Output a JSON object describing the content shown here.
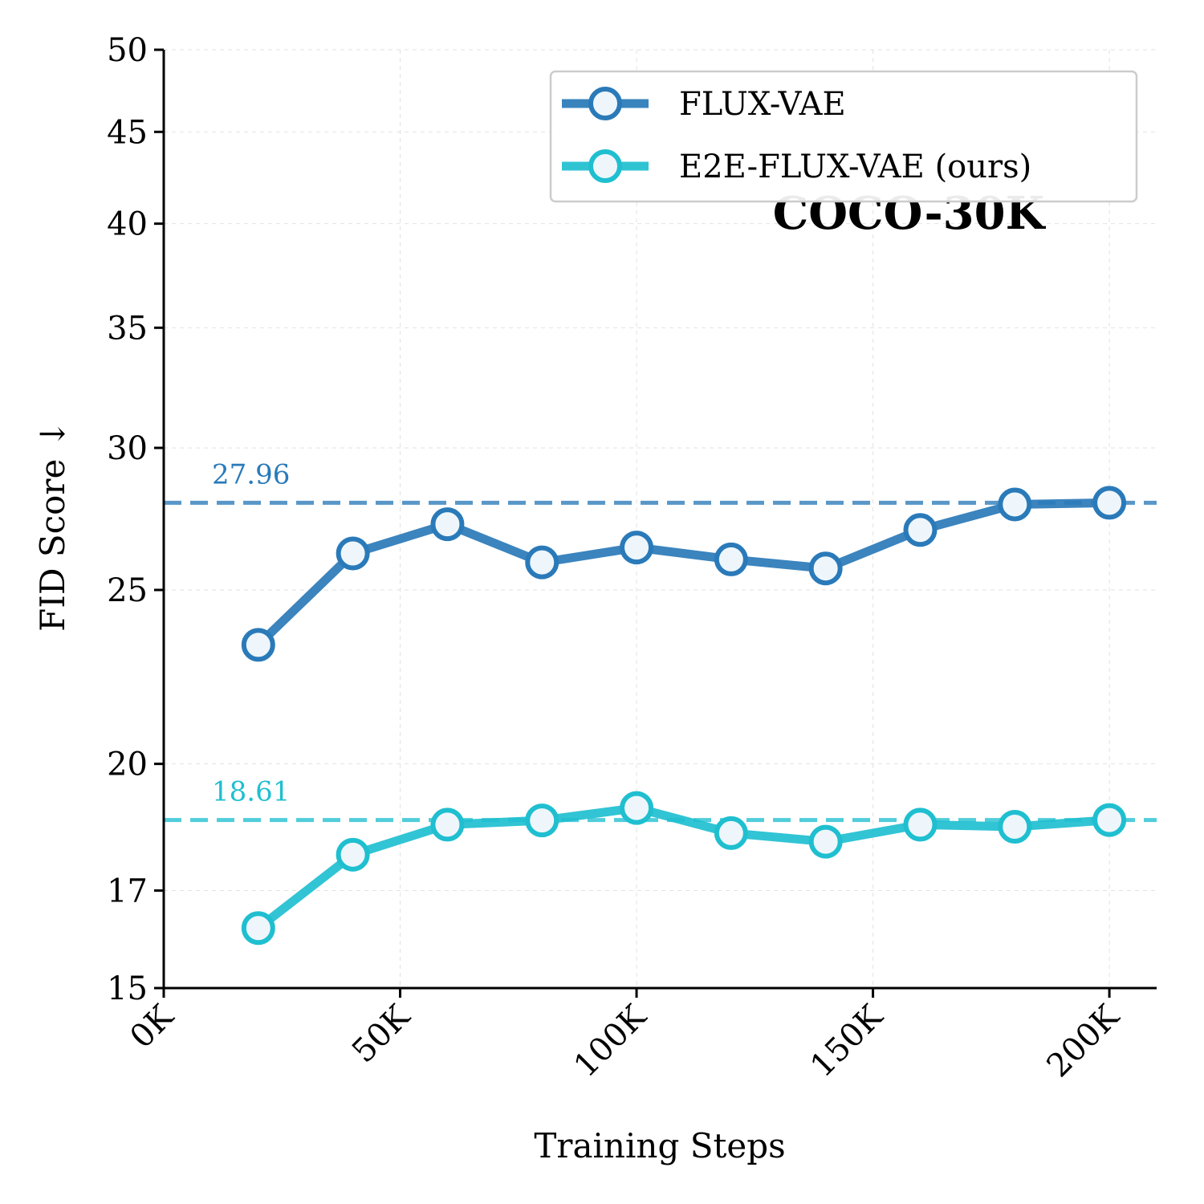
{
  "chart_data": {
    "type": "line",
    "title": "COCO-30K",
    "xlabel": "Training Steps",
    "ylabel": "FID Score ↓",
    "x": [
      20000,
      40000,
      60000,
      80000,
      100000,
      120000,
      140000,
      160000,
      180000,
      200000
    ],
    "xlim": [
      0,
      210000
    ],
    "ylim": [
      15,
      50
    ],
    "y_scale": "log",
    "x_ticks": [
      0,
      50000,
      100000,
      150000,
      200000
    ],
    "x_tick_labels": [
      "0K",
      "50K",
      "100K",
      "150K",
      "200K"
    ],
    "y_ticks": [
      15,
      17,
      20,
      25,
      30,
      35,
      40,
      45,
      50
    ],
    "y_tick_labels": [
      "15",
      "17",
      "20",
      "25",
      "30",
      "35",
      "40",
      "45",
      "50"
    ],
    "grid": true,
    "legend_position": "top-right",
    "series": [
      {
        "name": "FLUX-VAE",
        "color": "#2a7ab9",
        "values": [
          23.3,
          26.2,
          27.2,
          25.9,
          26.4,
          26.0,
          25.7,
          27.0,
          27.9,
          27.96
        ]
      },
      {
        "name": "E2E-FLUX-VAE (ours)",
        "color": "#1fbfd0",
        "values": [
          16.2,
          17.8,
          18.5,
          18.6,
          18.9,
          18.3,
          18.1,
          18.5,
          18.45,
          18.61
        ]
      }
    ],
    "reference_lines": [
      {
        "label": "27.96",
        "value": 27.96,
        "color": "#2a7ab9"
      },
      {
        "label": "18.61",
        "value": 18.61,
        "color": "#1fbfd0"
      }
    ]
  }
}
